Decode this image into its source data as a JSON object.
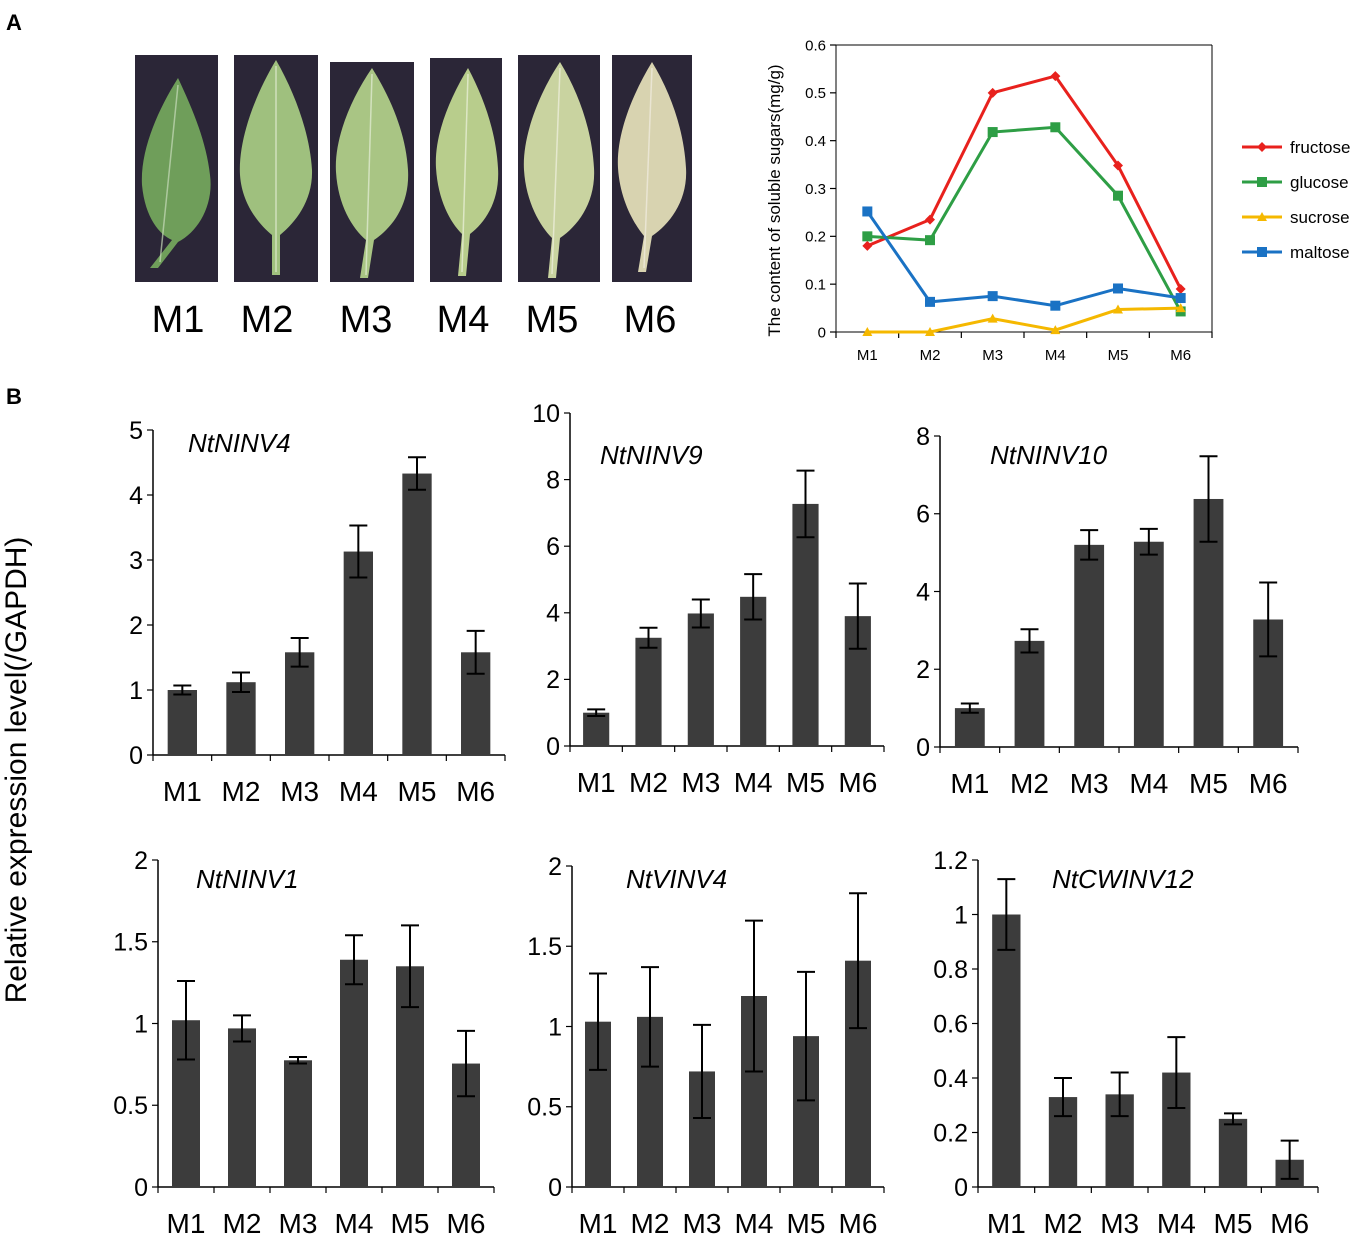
{
  "panel_labels": {
    "a": "A",
    "b": "B"
  },
  "leaf_photos": {
    "labels": [
      "M1",
      "M2",
      "M3",
      "M4",
      "M5",
      "M6"
    ],
    "leaf_colors": [
      "#6f9e5a",
      "#9fc07e",
      "#a9c584",
      "#b8cd8c",
      "#c9d3a0",
      "#d8d3b0"
    ]
  },
  "shared_ylabel": "Relative expression level(/GAPDH)",
  "colors": {
    "bar": "#3c3c3c",
    "fructose": "#e8211d",
    "glucose": "#2e9e45",
    "sucrose": "#f5b800",
    "maltose": "#1a72c4"
  },
  "chart_data": [
    {
      "id": "sugars",
      "type": "line",
      "title": "",
      "xlabel": "",
      "ylabel": "The content of soluble  sugars(mg/g)",
      "categories": [
        "M1",
        "M2",
        "M3",
        "M4",
        "M5",
        "M6"
      ],
      "ylim": [
        0,
        0.6
      ],
      "yticks": [
        0,
        0.1,
        0.2,
        0.3,
        0.4,
        0.5,
        0.6
      ],
      "ytick_labels": [
        "0",
        "0.1",
        "0.2",
        "0.3",
        "0.4",
        "0.5",
        "0.6"
      ],
      "legend_position": "right",
      "series": [
        {
          "name": "fructose",
          "marker": "diamond",
          "color": "#e8211d",
          "values": [
            0.18,
            0.235,
            0.5,
            0.535,
            0.348,
            0.09
          ]
        },
        {
          "name": "glucose",
          "marker": "square",
          "color": "#2e9e45",
          "values": [
            0.2,
            0.192,
            0.418,
            0.428,
            0.285,
            0.043
          ]
        },
        {
          "name": "sucrose",
          "marker": "triangle",
          "color": "#f5b800",
          "values": [
            0.0,
            0.0,
            0.028,
            0.004,
            0.047,
            0.05
          ]
        },
        {
          "name": "maltose",
          "marker": "square",
          "color": "#1a72c4",
          "values": [
            0.252,
            0.063,
            0.075,
            0.055,
            0.091,
            0.071
          ]
        }
      ]
    },
    {
      "id": "ntninv4",
      "type": "bar",
      "title": "NtNINV4",
      "xlabel": "",
      "ylabel": "",
      "categories": [
        "M1",
        "M2",
        "M3",
        "M4",
        "M5",
        "M6"
      ],
      "ylim": [
        0,
        5
      ],
      "yticks": [
        0,
        1,
        2,
        3,
        4,
        5
      ],
      "ytick_labels": [
        "0",
        "1",
        "2",
        "3",
        "4",
        "5"
      ],
      "values": [
        1.0,
        1.12,
        1.58,
        3.13,
        4.33,
        1.58
      ],
      "errors": [
        0.07,
        0.15,
        0.22,
        0.4,
        0.25,
        0.33
      ]
    },
    {
      "id": "ntninv9",
      "type": "bar",
      "title": "NtNINV9",
      "xlabel": "",
      "ylabel": "",
      "categories": [
        "M1",
        "M2",
        "M3",
        "M4",
        "M5",
        "M6"
      ],
      "ylim": [
        0,
        10
      ],
      "yticks": [
        0,
        2,
        4,
        6,
        8,
        10
      ],
      "ytick_labels": [
        "0",
        "2",
        "4",
        "6",
        "8",
        "10"
      ],
      "values": [
        1.0,
        3.25,
        3.98,
        4.48,
        7.27,
        3.9
      ],
      "errors": [
        0.1,
        0.3,
        0.42,
        0.68,
        1.0,
        0.98
      ]
    },
    {
      "id": "ntninv10",
      "type": "bar",
      "title": "NtNINV10",
      "xlabel": "",
      "ylabel": "",
      "categories": [
        "M1",
        "M2",
        "M3",
        "M4",
        "M5",
        "M6"
      ],
      "ylim": [
        0,
        8
      ],
      "yticks": [
        0,
        2,
        4,
        6,
        8
      ],
      "ytick_labels": [
        "0",
        "2",
        "4",
        "6",
        "8"
      ],
      "values": [
        1.0,
        2.73,
        5.2,
        5.28,
        6.38,
        3.28
      ],
      "errors": [
        0.12,
        0.3,
        0.38,
        0.33,
        1.1,
        0.95
      ]
    },
    {
      "id": "ntninv1",
      "type": "bar",
      "title": "NtNINV1",
      "xlabel": "",
      "ylabel": "",
      "categories": [
        "M1",
        "M2",
        "M3",
        "M4",
        "M5",
        "M6"
      ],
      "ylim": [
        0,
        2
      ],
      "yticks": [
        0,
        0.5,
        1,
        1.5,
        2
      ],
      "ytick_labels": [
        "0",
        "0.5",
        "1",
        "1.5",
        "2"
      ],
      "values": [
        1.02,
        0.97,
        0.775,
        1.39,
        1.35,
        0.755
      ],
      "errors": [
        0.24,
        0.08,
        0.02,
        0.15,
        0.25,
        0.2
      ]
    },
    {
      "id": "ntvinv4",
      "type": "bar",
      "title": "NtVINV4",
      "xlabel": "",
      "ylabel": "",
      "categories": [
        "M1",
        "M2",
        "M3",
        "M4",
        "M5",
        "M6"
      ],
      "ylim": [
        0,
        2
      ],
      "yticks": [
        0,
        0.5,
        1,
        1.5,
        2
      ],
      "ytick_labels": [
        "0",
        "0.5",
        "1",
        "1.5",
        "2"
      ],
      "values": [
        1.03,
        1.06,
        0.72,
        1.19,
        0.94,
        1.41
      ],
      "errors": [
        0.3,
        0.31,
        0.29,
        0.47,
        0.4,
        0.42
      ]
    },
    {
      "id": "ntcwinv12",
      "type": "bar",
      "title": "NtCWINV12",
      "xlabel": "",
      "ylabel": "",
      "categories": [
        "M1",
        "M2",
        "M3",
        "M4",
        "M5",
        "M6"
      ],
      "ylim": [
        0,
        1.2
      ],
      "yticks": [
        0,
        0.2,
        0.4,
        0.6,
        0.8,
        1.0,
        1.2
      ],
      "ytick_labels": [
        "0",
        "0.2",
        "0.4",
        "0.6",
        "0.8",
        "1",
        "1.2"
      ],
      "values": [
        1.0,
        0.33,
        0.34,
        0.42,
        0.25,
        0.1
      ],
      "errors": [
        0.13,
        0.07,
        0.08,
        0.13,
        0.02,
        0.07
      ]
    }
  ]
}
